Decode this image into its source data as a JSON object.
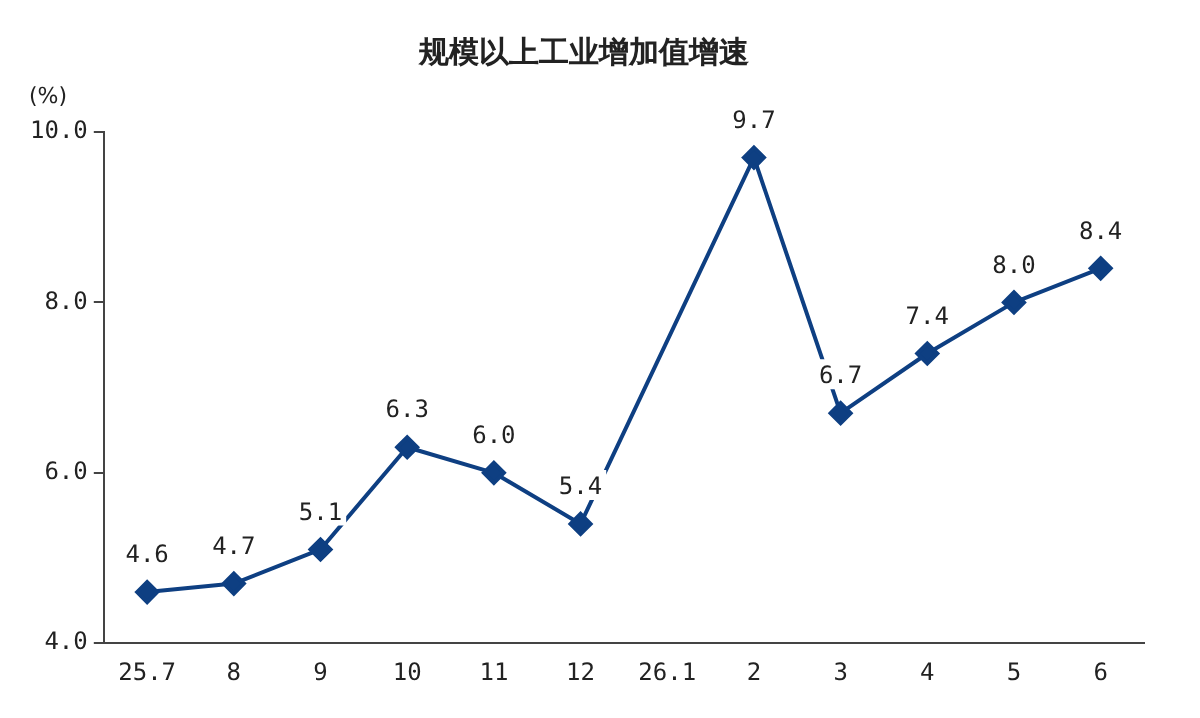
{
  "chart_data": {
    "type": "line",
    "title": "规模以上工业增加值增速",
    "ylabel": "(%)",
    "categories": [
      "25.7",
      "8",
      "9",
      "10",
      "11",
      "12",
      "26.1",
      "2",
      "3",
      "4",
      "5",
      "6"
    ],
    "series": [
      {
        "color": "#0e3f82",
        "values": [
          4.6,
          4.7,
          5.1,
          6.3,
          6.0,
          5.4,
          null,
          9.7,
          6.7,
          7.4,
          8.0,
          8.4
        ],
        "value_labels": [
          "4.6",
          "4.7",
          "5.1",
          "6.3",
          "6.0",
          "5.4",
          null,
          "9.7",
          "6.7",
          "7.4",
          "8.0",
          "8.4"
        ]
      }
    ],
    "ylim": [
      4,
      10
    ],
    "yticks": [
      {
        "value": 4,
        "label": "4.0"
      },
      {
        "value": 6,
        "label": "6.0"
      },
      {
        "value": 8,
        "label": "8.0"
      },
      {
        "value": 10,
        "label": "10.0"
      }
    ],
    "grid": false,
    "legend": false,
    "marker": "diamond",
    "line_style": "solid"
  }
}
